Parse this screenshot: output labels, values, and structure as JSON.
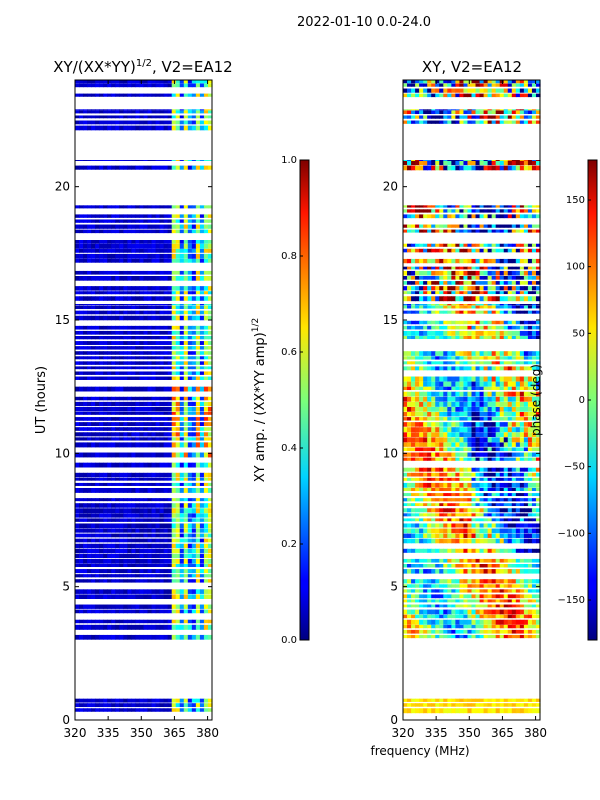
{
  "figure": {
    "suptitle": "2022-01-10 0.0-24.0",
    "xlabel_shared": "frequency (MHz)"
  },
  "chart_data": [
    {
      "type": "heatmap",
      "title_main": "XY/(XX*YY)",
      "title_sup": "1/2",
      "title_tail": ", V2=EA12",
      "xlabel": "",
      "ylabel": "UT (hours)",
      "xlim": [
        320,
        382
      ],
      "ylim": [
        0,
        24
      ],
      "xticks": [
        320,
        335,
        350,
        365,
        380
      ],
      "yticks": [
        0,
        5,
        10,
        15,
        20
      ],
      "colormap": "jet",
      "colorbar": {
        "label_main": "XY amp. / (XX*YY amp)",
        "label_sup": "1/2",
        "range": [
          0.0,
          1.0
        ],
        "ticks": [
          "0.0",
          "0.2",
          "0.4",
          "0.6",
          "0.8",
          "1.0"
        ]
      },
      "data_rows_ut": [
        [
          0.25,
          0.8
        ],
        [
          3.0,
          15.6
        ],
        [
          15.7,
          17.0
        ],
        [
          17.1,
          18.0
        ],
        [
          18.2,
          19.3
        ],
        [
          20.6,
          21.0
        ],
        [
          22.1,
          22.9
        ],
        [
          23.3,
          24.0
        ]
      ],
      "bright_channels_mhz": [
        [
          363.5,
          366
        ],
        [
          368,
          371
        ],
        [
          373.5,
          376
        ],
        [
          378,
          380.5
        ]
      ]
    },
    {
      "type": "heatmap",
      "title_main": "XY, V2=EA12",
      "xlabel": "frequency (MHz)",
      "ylabel": "",
      "xlim": [
        320,
        382
      ],
      "ylim": [
        0,
        24
      ],
      "xticks": [
        320,
        335,
        350,
        365,
        380
      ],
      "yticks": [
        0,
        5,
        10,
        15,
        20
      ],
      "colormap": "jet",
      "colorbar": {
        "label": "phase (deg)",
        "range": [
          -180,
          180
        ],
        "ticks": [
          "−150",
          "−100",
          "−50",
          "0",
          "50",
          "100",
          "150"
        ]
      },
      "data_rows_ut": [
        [
          0.25,
          0.8
        ],
        [
          3.0,
          15.6
        ],
        [
          15.7,
          17.0
        ],
        [
          17.1,
          18.0
        ],
        [
          18.2,
          19.3
        ],
        [
          20.6,
          21.0
        ],
        [
          22.1,
          22.9
        ],
        [
          23.3,
          24.0
        ]
      ]
    }
  ]
}
